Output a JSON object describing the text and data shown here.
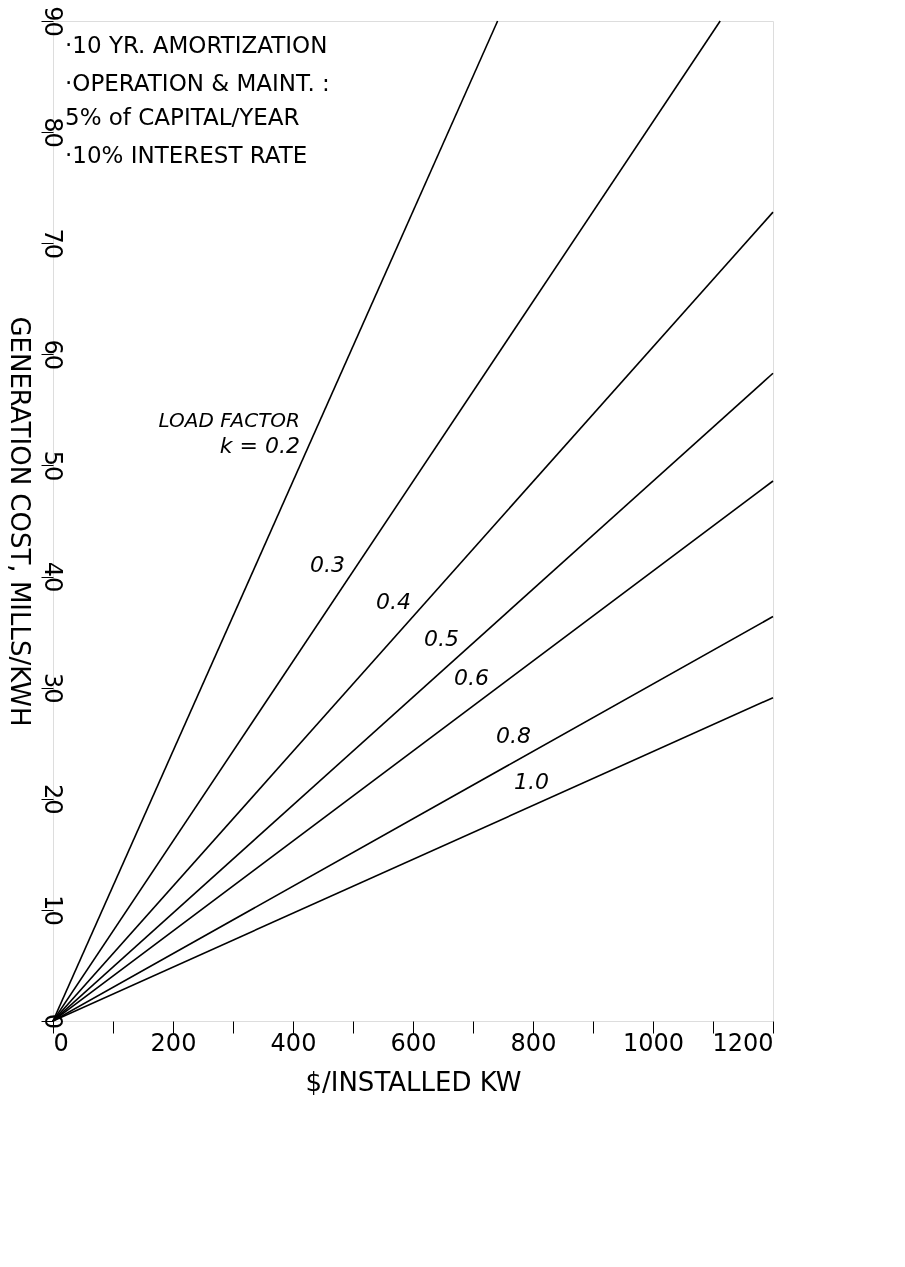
{
  "chart_data": {
    "type": "line",
    "xlabel": "$/INSTALLED KW",
    "ylabel": "GENERATION COST, MILLS/KWH",
    "xlim": [
      0,
      1200
    ],
    "ylim": [
      0,
      90
    ],
    "xticks": [
      0,
      {
        "value": 100,
        "label": null
      },
      200,
      {
        "value": 300,
        "label": null
      },
      400,
      {
        "value": 500,
        "label": null
      },
      600,
      {
        "value": 700,
        "label": null
      },
      800,
      {
        "value": 900,
        "label": null
      },
      1000,
      {
        "value": 1100,
        "label": null
      },
      1200
    ],
    "yticks": [
      0,
      10,
      20,
      30,
      40,
      50,
      60,
      70,
      80,
      90
    ],
    "grid": false,
    "legend": false,
    "marker": "none",
    "line_style": "solid",
    "annotations": [
      "·10 YR. AMORTIZATION",
      "·OPERATION & MAINT. :",
      "5% of CAPITAL/YEAR",
      "·10% INTEREST RATE",
      "LOAD FACTOR"
    ],
    "series": [
      {
        "name": "k = 0.2",
        "color": "#000000",
        "x": [
          0,
          741
        ],
        "values": [
          0,
          90
        ]
      },
      {
        "name": "0.3",
        "color": "#000000",
        "x": [
          0,
          1112
        ],
        "values": [
          0,
          90
        ]
      },
      {
        "name": "0.4",
        "color": "#000000",
        "x": [
          0,
          1200
        ],
        "values": [
          0,
          72.8
        ]
      },
      {
        "name": "0.5",
        "color": "#000000",
        "x": [
          0,
          1200
        ],
        "values": [
          0,
          58.3
        ]
      },
      {
        "name": "0.6",
        "color": "#000000",
        "x": [
          0,
          1200
        ],
        "values": [
          0,
          48.6
        ]
      },
      {
        "name": "0.8",
        "color": "#000000",
        "x": [
          0,
          1200
        ],
        "values": [
          0,
          36.4
        ]
      },
      {
        "name": "1.0",
        "color": "#000000",
        "x": [
          0,
          1200
        ],
        "values": [
          0,
          29.1
        ]
      }
    ]
  }
}
